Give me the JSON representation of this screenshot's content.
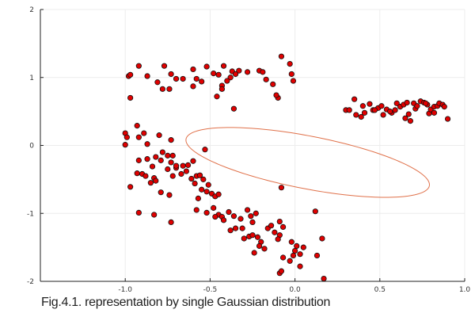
{
  "caption": "Fig.4.1. representation by single Gaussian distribution",
  "chart_data": {
    "type": "scatter",
    "title": "",
    "xlabel": "",
    "ylabel": "",
    "xlim": [
      -1.5,
      1.0
    ],
    "ylim": [
      -2,
      2
    ],
    "xticks": [
      -1.0,
      -0.5,
      0.0,
      0.5,
      1.0
    ],
    "xtick_labels": [
      "-1.0",
      "-0.5",
      "0.0",
      "0.5",
      "1.0"
    ],
    "yticks": [
      -2,
      -1,
      0,
      1,
      2
    ],
    "ytick_labels": [
      "-2",
      "-1",
      "0",
      "1",
      "2"
    ],
    "grid": true,
    "legend": "none",
    "marker_color": "#e00000",
    "marker_edge_color": "#111111",
    "ellipse_color": "#e0714a",
    "ellipse": {
      "center": [
        0.075,
        -0.25
      ],
      "semi_axes": [
        0.81,
        0.35
      ],
      "angle_deg": -31
    },
    "points": [
      [
        -0.98,
        1.02
      ],
      [
        -0.97,
        1.04
      ],
      [
        -0.92,
        1.17
      ],
      [
        -0.87,
        1.02
      ],
      [
        -0.97,
        0.7
      ],
      [
        -0.81,
        0.93
      ],
      [
        -0.77,
        1.17
      ],
      [
        -0.73,
        1.05
      ],
      [
        -0.7,
        0.98
      ],
      [
        -0.66,
        0.98
      ],
      [
        -0.6,
        1.12
      ],
      [
        -0.58,
        0.98
      ],
      [
        -0.55,
        0.94
      ],
      [
        -0.52,
        1.16
      ],
      [
        -0.48,
        1.06
      ],
      [
        -0.45,
        1.04
      ],
      [
        -0.42,
        1.17
      ],
      [
        -0.37,
        1.09
      ],
      [
        -0.33,
        1.1
      ],
      [
        -0.35,
        1.05
      ],
      [
        -0.38,
        1.0
      ],
      [
        -0.4,
        0.95
      ],
      [
        -0.43,
        0.88
      ],
      [
        -0.43,
        0.83
      ],
      [
        -0.46,
        0.72
      ],
      [
        -0.36,
        0.54
      ],
      [
        -0.28,
        1.08
      ],
      [
        -0.21,
        1.1
      ],
      [
        -0.19,
        1.08
      ],
      [
        -0.17,
        0.97
      ],
      [
        -0.13,
        0.9
      ],
      [
        -0.1,
        0.7
      ],
      [
        -0.11,
        0.74
      ],
      [
        -0.08,
        1.31
      ],
      [
        -0.03,
        1.2
      ],
      [
        -0.02,
        1.05
      ],
      [
        -0.01,
        0.95
      ],
      [
        -0.6,
        0.87
      ],
      [
        -0.78,
        0.83
      ],
      [
        -0.74,
        0.83
      ],
      [
        -1.0,
        0.18
      ],
      [
        -0.99,
        0.12
      ],
      [
        -0.93,
        0.29
      ],
      [
        -0.89,
        0.18
      ],
      [
        -0.87,
        0.02
      ],
      [
        -0.92,
        0.12
      ],
      [
        -1.0,
        0.01
      ],
      [
        -0.8,
        0.15
      ],
      [
        -0.73,
        0.08
      ],
      [
        -0.78,
        -0.1
      ],
      [
        -0.82,
        -0.17
      ],
      [
        -0.75,
        -0.15
      ],
      [
        -0.87,
        -0.2
      ],
      [
        -0.92,
        -0.22
      ],
      [
        -0.84,
        -0.31
      ],
      [
        -0.79,
        -0.22
      ],
      [
        -0.73,
        -0.25
      ],
      [
        -0.75,
        -0.35
      ],
      [
        -0.7,
        -0.33
      ],
      [
        -0.9,
        -0.42
      ],
      [
        -0.88,
        -0.45
      ],
      [
        -0.83,
        -0.48
      ],
      [
        -0.85,
        -0.55
      ],
      [
        -0.82,
        -0.52
      ],
      [
        -0.93,
        -0.41
      ],
      [
        -0.97,
        -0.61
      ],
      [
        -0.79,
        -0.69
      ],
      [
        -0.74,
        -0.73
      ],
      [
        -0.72,
        -0.45
      ],
      [
        -0.67,
        -0.42
      ],
      [
        -0.64,
        -0.38
      ],
      [
        -0.63,
        -0.29
      ],
      [
        -0.61,
        -0.49
      ],
      [
        -0.58,
        -0.45
      ],
      [
        -0.56,
        -0.44
      ],
      [
        -0.53,
        -0.06
      ],
      [
        -0.54,
        -0.5
      ],
      [
        -0.51,
        -0.58
      ],
      [
        -0.55,
        -0.65
      ],
      [
        -0.52,
        -0.68
      ],
      [
        -0.59,
        -0.56
      ],
      [
        -0.49,
        -0.71
      ],
      [
        -0.47,
        -0.75
      ],
      [
        -0.45,
        -0.72
      ],
      [
        -0.57,
        -0.78
      ],
      [
        -0.58,
        -0.95
      ],
      [
        -0.52,
        -0.99
      ],
      [
        -0.48,
        -0.92
      ],
      [
        -0.45,
        -1.02
      ],
      [
        -0.43,
        -1.05
      ],
      [
        -0.47,
        -1.05
      ],
      [
        -0.42,
        -1.1
      ],
      [
        -0.39,
        -0.98
      ],
      [
        -0.36,
        -1.04
      ],
      [
        -0.32,
        -1.08
      ],
      [
        -0.28,
        -0.95
      ],
      [
        -0.26,
        -1.04
      ],
      [
        -0.23,
        -1.0
      ],
      [
        -0.25,
        -1.13
      ],
      [
        -0.31,
        -1.22
      ],
      [
        -0.35,
        -1.22
      ],
      [
        -0.38,
        -1.25
      ],
      [
        -0.3,
        -1.37
      ],
      [
        -0.27,
        -1.34
      ],
      [
        -0.25,
        -1.32
      ],
      [
        -0.22,
        -1.35
      ],
      [
        -0.2,
        -1.42
      ],
      [
        -0.21,
        -1.48
      ],
      [
        -0.24,
        -1.58
      ],
      [
        -0.18,
        -1.52
      ],
      [
        -0.16,
        -1.22
      ],
      [
        -0.14,
        -1.18
      ],
      [
        -0.12,
        -1.28
      ],
      [
        -0.09,
        -1.12
      ],
      [
        -0.07,
        -1.2
      ],
      [
        -0.09,
        -1.32
      ],
      [
        -0.1,
        -1.38
      ],
      [
        -0.02,
        -1.42
      ],
      [
        0.0,
        -1.55
      ],
      [
        -0.01,
        -1.62
      ],
      [
        -0.03,
        -1.7
      ],
      [
        -0.07,
        -1.65
      ],
      [
        0.01,
        -1.48
      ],
      [
        0.05,
        -1.5
      ],
      [
        -0.09,
        -1.88
      ],
      [
        -0.08,
        -1.85
      ],
      [
        0.13,
        -1.62
      ],
      [
        0.16,
        -1.37
      ],
      [
        0.12,
        -0.97
      ],
      [
        -0.08,
        -0.62
      ],
      [
        -0.83,
        -1.02
      ],
      [
        -0.73,
        -1.13
      ],
      [
        -0.92,
        -0.99
      ],
      [
        0.03,
        -1.78
      ],
      [
        0.03,
        -1.6
      ],
      [
        0.17,
        -1.96
      ],
      [
        -0.7,
        -0.3
      ],
      [
        -0.6,
        -0.23
      ],
      [
        -0.72,
        -0.15
      ],
      [
        -0.66,
        -0.3
      ],
      [
        0.3,
        0.52
      ],
      [
        0.32,
        0.52
      ],
      [
        0.35,
        0.68
      ],
      [
        0.36,
        0.45
      ],
      [
        0.39,
        0.42
      ],
      [
        0.4,
        0.58
      ],
      [
        0.41,
        0.48
      ],
      [
        0.44,
        0.61
      ],
      [
        0.46,
        0.52
      ],
      [
        0.49,
        0.55
      ],
      [
        0.51,
        0.58
      ],
      [
        0.52,
        0.45
      ],
      [
        0.54,
        0.53
      ],
      [
        0.57,
        0.48
      ],
      [
        0.59,
        0.52
      ],
      [
        0.6,
        0.62
      ],
      [
        0.62,
        0.57
      ],
      [
        0.64,
        0.6
      ],
      [
        0.65,
        0.4
      ],
      [
        0.67,
        0.46
      ],
      [
        0.68,
        0.36
      ],
      [
        0.7,
        0.62
      ],
      [
        0.71,
        0.54
      ],
      [
        0.72,
        0.58
      ],
      [
        0.74,
        0.65
      ],
      [
        0.76,
        0.63
      ],
      [
        0.78,
        0.6
      ],
      [
        0.79,
        0.47
      ],
      [
        0.8,
        0.53
      ],
      [
        0.82,
        0.57
      ],
      [
        0.84,
        0.58
      ],
      [
        0.85,
        0.62
      ],
      [
        0.87,
        0.6
      ],
      [
        0.88,
        0.57
      ],
      [
        0.9,
        0.39
      ],
      [
        0.82,
        0.48
      ],
      [
        0.77,
        0.62
      ],
      [
        0.66,
        0.63
      ],
      [
        0.56,
        0.5
      ],
      [
        0.47,
        0.52
      ]
    ]
  }
}
